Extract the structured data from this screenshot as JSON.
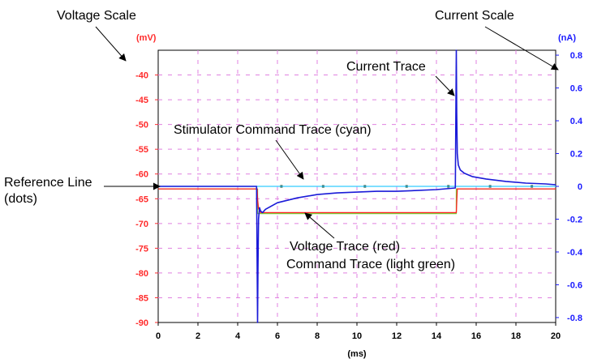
{
  "chart_data": {
    "type": "line",
    "x_unit": "(ms)",
    "x_ticks": [
      "0",
      "2",
      "4",
      "6",
      "8",
      "10",
      "12",
      "14",
      "16",
      "18",
      "20"
    ],
    "xlim": [
      0,
      20
    ],
    "left_axis": {
      "unit": "(mV)",
      "ticks": [
        "-40",
        "-45",
        "-50",
        "-55",
        "-60",
        "-65",
        "-70",
        "-75",
        "-80",
        "-85",
        "-90"
      ],
      "ylim": [
        -90,
        -35
      ]
    },
    "right_axis": {
      "unit": "(nA)",
      "ticks": [
        "0.8",
        "0.6",
        "0.4",
        "0.2",
        "0",
        "-0.2",
        "-0.4",
        "-0.6",
        "-0.8"
      ],
      "ylim": [
        -0.83,
        0.83
      ]
    },
    "grid": true,
    "colors": {
      "voltage": "#ff2020",
      "command": "#7ccc3a",
      "current": "#1a1ad8",
      "stimulator": "#33ccff",
      "grid": "#e080e0",
      "left_axis": "#ff2a2a",
      "right_axis": "#1a1aff"
    },
    "series": [
      {
        "key": "voltage",
        "axis": "left",
        "x": [
          0,
          4.98,
          5.0,
          5.05,
          5.15,
          5.3,
          15.0,
          15.05,
          20
        ],
        "y": [
          -63,
          -63,
          -65,
          -67,
          -67.8,
          -67.8,
          -67.8,
          -63,
          -63
        ]
      },
      {
        "key": "command",
        "axis": "left",
        "x": [
          0,
          5.0,
          5.0,
          15.0,
          15.0,
          20
        ],
        "y": [
          -63,
          -63,
          -68,
          -68,
          -63,
          -63
        ]
      },
      {
        "key": "stimulator",
        "axis": "right",
        "x": [
          0,
          20
        ],
        "y": [
          0,
          0
        ]
      },
      {
        "key": "current",
        "axis": "right",
        "x": [
          0,
          4.95,
          5.0,
          5.02,
          5.05,
          5.1,
          5.15,
          5.25,
          5.4,
          6.0,
          7.0,
          8.0,
          9.0,
          10.0,
          11.0,
          12.0,
          13.0,
          14.0,
          14.95,
          15.0,
          15.02,
          15.05,
          15.1,
          15.2,
          15.4,
          15.8,
          16.5,
          17.5,
          18.5,
          19.5,
          20
        ],
        "y": [
          0,
          0,
          -0.83,
          -0.5,
          -0.2,
          -0.13,
          -0.15,
          -0.16,
          -0.14,
          -0.1,
          -0.07,
          -0.05,
          -0.04,
          -0.035,
          -0.03,
          -0.03,
          -0.025,
          -0.02,
          -0.01,
          0.83,
          0.45,
          0.2,
          0.13,
          0.1,
          0.08,
          0.06,
          0.045,
          0.03,
          0.02,
          0.015,
          0.01
        ]
      }
    ],
    "reference_dots": {
      "axis": "right",
      "y": 0,
      "x": [
        6.2,
        8.3,
        10.4,
        12.5,
        14.6,
        16.7,
        18.8
      ]
    }
  },
  "annotations": {
    "voltage_scale": "Voltage Scale",
    "current_scale": "Current Scale",
    "current_trace": "Current Trace",
    "stimulator_trace": "Stimulator Command Trace (cyan)",
    "reference_line_1": "Reference Line",
    "reference_line_2": "(dots)",
    "voltage_trace": "Voltage Trace (red)",
    "command_trace": "Command Trace (light green)"
  }
}
